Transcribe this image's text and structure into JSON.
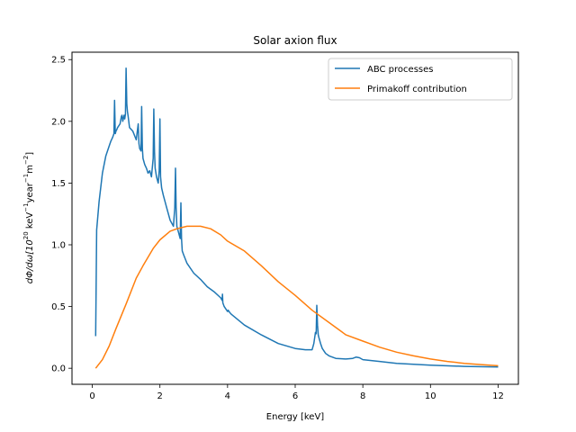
{
  "chart_data": {
    "type": "line",
    "title": "Solar axion flux",
    "xlabel": "Energy [keV]",
    "ylabel": {
      "prefix": "dΦ/dω[10",
      "exp1": "20",
      "unit1": " keV",
      "exp2": "−1",
      "unit2": "year",
      "exp3": "−1",
      "unit3": "m",
      "exp4": "−2",
      "suffix": "]"
    },
    "xlim": [
      -0.6,
      12.6
    ],
    "ylim": [
      -0.13,
      2.56
    ],
    "xticks": [
      0,
      2,
      4,
      6,
      8,
      10,
      12
    ],
    "xtick_labels": [
      "0",
      "2",
      "4",
      "6",
      "8",
      "10",
      "12"
    ],
    "yticks": [
      0.0,
      0.5,
      1.0,
      1.5,
      2.0,
      2.5
    ],
    "ytick_labels": [
      "0.0",
      "0.5",
      "1.0",
      "1.5",
      "2.0",
      "2.5"
    ],
    "grid": false,
    "legend_position": "top-right",
    "series": [
      {
        "name": "ABC processes",
        "color": "#1f77b4",
        "x": [
          0.1,
          0.13,
          0.2,
          0.3,
          0.4,
          0.5,
          0.55,
          0.6,
          0.64,
          0.66,
          0.68,
          0.7,
          0.72,
          0.75,
          0.82,
          0.86,
          0.88,
          0.9,
          0.94,
          0.96,
          0.98,
          1.0,
          1.02,
          1.04,
          1.06,
          1.1,
          1.2,
          1.3,
          1.36,
          1.38,
          1.4,
          1.44,
          1.46,
          1.48,
          1.5,
          1.55,
          1.6,
          1.65,
          1.7,
          1.75,
          1.8,
          1.82,
          1.84,
          1.86,
          1.9,
          1.95,
          1.98,
          2.0,
          2.02,
          2.05,
          2.1,
          2.2,
          2.3,
          2.4,
          2.44,
          2.46,
          2.48,
          2.5,
          2.55,
          2.6,
          2.62,
          2.64,
          2.66,
          2.7,
          2.8,
          3.0,
          3.2,
          3.4,
          3.6,
          3.8,
          3.84,
          3.85,
          3.86,
          3.9,
          4.0,
          4.02,
          4.04,
          4.1,
          4.5,
          5.0,
          5.5,
          6.0,
          6.3,
          6.5,
          6.55,
          6.6,
          6.62,
          6.64,
          6.66,
          6.68,
          6.7,
          6.75,
          6.8,
          6.9,
          7.0,
          7.2,
          7.5,
          7.7,
          7.8,
          7.9,
          8.0,
          8.5,
          9.0,
          10.0,
          11.0,
          12.0
        ],
        "y": [
          0.26,
          1.12,
          1.35,
          1.58,
          1.72,
          1.8,
          1.84,
          1.87,
          1.9,
          2.17,
          1.9,
          1.92,
          1.93,
          1.95,
          1.98,
          2.04,
          2.05,
          2.0,
          2.05,
          2.02,
          2.06,
          2.43,
          2.14,
          2.08,
          2.04,
          1.95,
          1.92,
          1.85,
          1.98,
          1.82,
          1.78,
          1.76,
          2.12,
          1.78,
          1.7,
          1.65,
          1.62,
          1.58,
          1.6,
          1.55,
          1.7,
          2.1,
          1.75,
          1.62,
          1.55,
          1.5,
          1.6,
          2.02,
          1.55,
          1.46,
          1.4,
          1.3,
          1.2,
          1.15,
          1.3,
          1.62,
          1.3,
          1.15,
          1.1,
          1.05,
          1.34,
          1.05,
          0.95,
          0.92,
          0.85,
          0.77,
          0.72,
          0.66,
          0.62,
          0.57,
          0.55,
          0.6,
          0.53,
          0.5,
          0.46,
          0.47,
          0.46,
          0.44,
          0.35,
          0.27,
          0.2,
          0.16,
          0.15,
          0.15,
          0.2,
          0.29,
          0.28,
          0.51,
          0.35,
          0.27,
          0.25,
          0.2,
          0.16,
          0.12,
          0.1,
          0.08,
          0.075,
          0.08,
          0.09,
          0.085,
          0.07,
          0.055,
          0.04,
          0.025,
          0.015,
          0.01
        ]
      },
      {
        "name": "Primakoff contribution",
        "color": "#ff7f0e",
        "x": [
          0.1,
          0.3,
          0.5,
          0.7,
          1.0,
          1.3,
          1.5,
          1.8,
          2.0,
          2.3,
          2.5,
          2.8,
          3.0,
          3.2,
          3.5,
          3.8,
          4.0,
          4.5,
          5.0,
          5.5,
          6.0,
          6.5,
          7.0,
          7.5,
          8.0,
          8.5,
          9.0,
          9.5,
          10.0,
          10.5,
          11.0,
          11.5,
          12.0
        ],
        "y": [
          0.0,
          0.07,
          0.18,
          0.32,
          0.52,
          0.73,
          0.83,
          0.97,
          1.04,
          1.11,
          1.13,
          1.15,
          1.15,
          1.15,
          1.13,
          1.08,
          1.03,
          0.95,
          0.83,
          0.7,
          0.59,
          0.47,
          0.37,
          0.27,
          0.22,
          0.17,
          0.13,
          0.1,
          0.075,
          0.055,
          0.04,
          0.03,
          0.02
        ]
      }
    ]
  }
}
